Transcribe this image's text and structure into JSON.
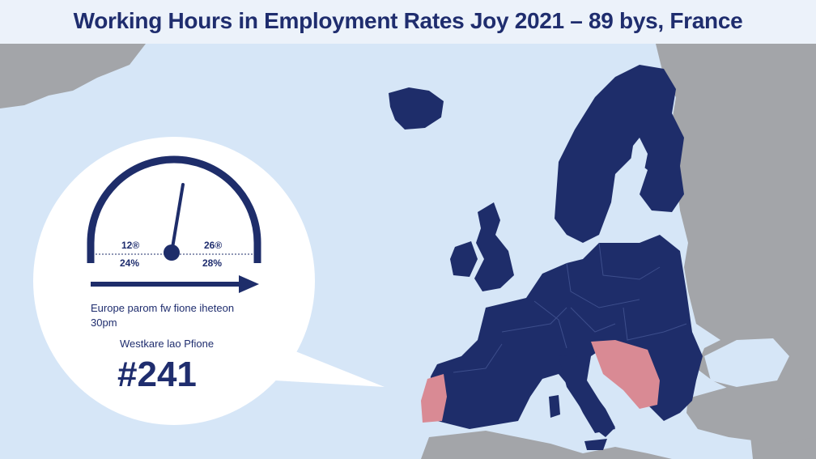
{
  "title": "Working Hours in Employment Rates Joy 2021 – 89 bys, France",
  "gauge": {
    "top_left_label": "12®",
    "top_right_label": "26®",
    "bottom_left_label": "24%",
    "bottom_right_label": "28%"
  },
  "caption": {
    "line1": "Europe parom fw fione iheteon",
    "line2": "30pm",
    "line3": "Westkare lao Pfione"
  },
  "figure": "#241",
  "colors": {
    "water": "#d6e6f7",
    "land_other": "#a3a5a9",
    "eu_countries": "#1e2d6a",
    "highlight": "#d98a94",
    "accent": "#1f2d6e"
  },
  "highlighted_countries": [
    "Portugal",
    "Croatia",
    "Bosnia and Herzegovina",
    "Serbia",
    "Montenegro",
    "Albania",
    "North Macedonia"
  ]
}
